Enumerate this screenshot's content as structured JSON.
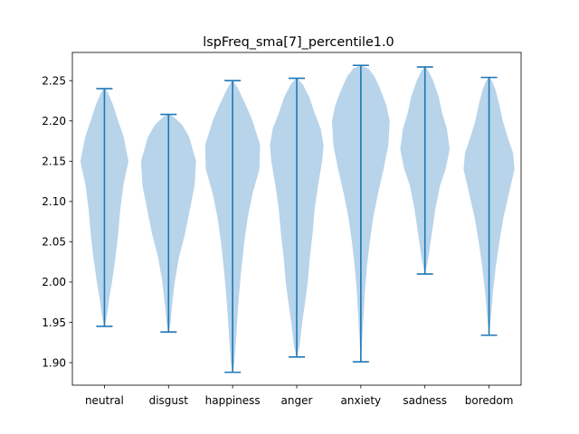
{
  "chart_data": {
    "type": "violin",
    "title": "lspFreq_sma[7]_percentile1.0",
    "xlabel": "",
    "ylabel": "",
    "categories": [
      "neutral",
      "disgust",
      "happiness",
      "anger",
      "anxiety",
      "sadness",
      "boredom"
    ],
    "ylim": [
      1.872,
      2.285
    ],
    "yticks": [
      1.9,
      1.95,
      2.0,
      2.05,
      2.1,
      2.15,
      2.2,
      2.25
    ],
    "ytick_labels": [
      "1.90",
      "1.95",
      "2.00",
      "2.05",
      "2.10",
      "2.15",
      "2.20",
      "2.25"
    ],
    "grid": false,
    "colors": {
      "body": "#b8d4ea",
      "line": "#1f77b4",
      "axis": "#000000"
    },
    "series": [
      {
        "category": "neutral",
        "min": 1.945,
        "max": 2.24,
        "profile": [
          [
            1.945,
            0.005
          ],
          [
            1.96,
            0.08
          ],
          [
            1.98,
            0.14
          ],
          [
            2.0,
            0.22
          ],
          [
            2.03,
            0.32
          ],
          [
            2.06,
            0.4
          ],
          [
            2.09,
            0.46
          ],
          [
            2.12,
            0.55
          ],
          [
            2.15,
            0.7
          ],
          [
            2.18,
            0.56
          ],
          [
            2.2,
            0.4
          ],
          [
            2.22,
            0.25
          ],
          [
            2.235,
            0.1
          ],
          [
            2.24,
            0.02
          ]
        ]
      },
      {
        "category": "disgust",
        "min": 1.938,
        "max": 2.208,
        "profile": [
          [
            1.938,
            0.005
          ],
          [
            1.95,
            0.06
          ],
          [
            1.97,
            0.1
          ],
          [
            2.0,
            0.18
          ],
          [
            2.03,
            0.3
          ],
          [
            2.06,
            0.48
          ],
          [
            2.09,
            0.62
          ],
          [
            2.12,
            0.76
          ],
          [
            2.15,
            0.8
          ],
          [
            2.18,
            0.6
          ],
          [
            2.195,
            0.4
          ],
          [
            2.205,
            0.15
          ],
          [
            2.208,
            0.02
          ]
        ]
      },
      {
        "category": "happiness",
        "min": 1.888,
        "max": 2.25,
        "profile": [
          [
            1.888,
            0.005
          ],
          [
            1.9,
            0.05
          ],
          [
            1.93,
            0.1
          ],
          [
            1.97,
            0.16
          ],
          [
            2.01,
            0.24
          ],
          [
            2.05,
            0.34
          ],
          [
            2.08,
            0.44
          ],
          [
            2.11,
            0.58
          ],
          [
            2.14,
            0.78
          ],
          [
            2.17,
            0.8
          ],
          [
            2.2,
            0.58
          ],
          [
            2.22,
            0.38
          ],
          [
            2.24,
            0.16
          ],
          [
            2.25,
            0.02
          ]
        ]
      },
      {
        "category": "anger",
        "min": 1.907,
        "max": 2.253,
        "profile": [
          [
            1.907,
            0.005
          ],
          [
            1.92,
            0.08
          ],
          [
            1.95,
            0.16
          ],
          [
            1.98,
            0.26
          ],
          [
            2.0,
            0.32
          ],
          [
            2.03,
            0.38
          ],
          [
            2.06,
            0.46
          ],
          [
            2.09,
            0.52
          ],
          [
            2.12,
            0.62
          ],
          [
            2.15,
            0.74
          ],
          [
            2.17,
            0.78
          ],
          [
            2.19,
            0.7
          ],
          [
            2.21,
            0.52
          ],
          [
            2.23,
            0.36
          ],
          [
            2.245,
            0.18
          ],
          [
            2.253,
            0.02
          ]
        ]
      },
      {
        "category": "anxiety",
        "min": 1.901,
        "max": 2.269,
        "profile": [
          [
            1.901,
            0.005
          ],
          [
            1.93,
            0.04
          ],
          [
            1.96,
            0.08
          ],
          [
            1.99,
            0.12
          ],
          [
            2.02,
            0.18
          ],
          [
            2.05,
            0.26
          ],
          [
            2.08,
            0.36
          ],
          [
            2.11,
            0.5
          ],
          [
            2.14,
            0.66
          ],
          [
            2.17,
            0.8
          ],
          [
            2.2,
            0.84
          ],
          [
            2.22,
            0.74
          ],
          [
            2.24,
            0.56
          ],
          [
            2.255,
            0.4
          ],
          [
            2.265,
            0.22
          ],
          [
            2.269,
            0.02
          ]
        ]
      },
      {
        "category": "sadness",
        "min": 2.01,
        "max": 2.267,
        "profile": [
          [
            2.01,
            0.005
          ],
          [
            2.03,
            0.1
          ],
          [
            2.06,
            0.2
          ],
          [
            2.09,
            0.3
          ],
          [
            2.12,
            0.44
          ],
          [
            2.14,
            0.6
          ],
          [
            2.165,
            0.72
          ],
          [
            2.19,
            0.64
          ],
          [
            2.21,
            0.5
          ],
          [
            2.23,
            0.4
          ],
          [
            2.25,
            0.24
          ],
          [
            2.262,
            0.1
          ],
          [
            2.267,
            0.02
          ]
        ]
      },
      {
        "category": "boredom",
        "min": 1.934,
        "max": 2.254,
        "profile": [
          [
            1.934,
            0.005
          ],
          [
            1.96,
            0.06
          ],
          [
            1.99,
            0.12
          ],
          [
            2.02,
            0.2
          ],
          [
            2.05,
            0.3
          ],
          [
            2.08,
            0.42
          ],
          [
            2.11,
            0.58
          ],
          [
            2.14,
            0.74
          ],
          [
            2.16,
            0.7
          ],
          [
            2.18,
            0.54
          ],
          [
            2.2,
            0.4
          ],
          [
            2.22,
            0.3
          ],
          [
            2.24,
            0.18
          ],
          [
            2.25,
            0.08
          ],
          [
            2.254,
            0.02
          ]
        ]
      }
    ]
  }
}
